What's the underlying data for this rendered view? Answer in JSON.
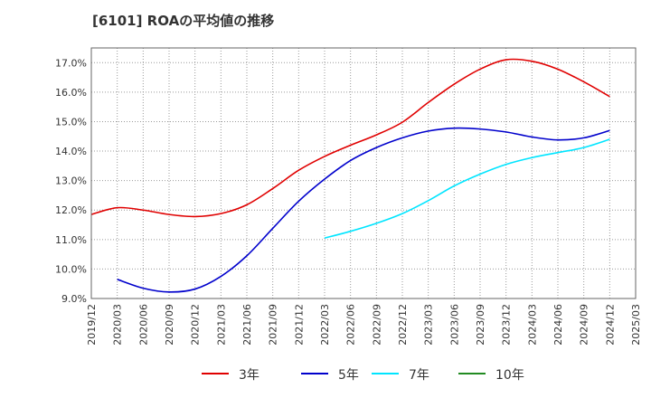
{
  "chart_data": {
    "type": "line",
    "title": "[6101]  ROAの平均値の推移",
    "ylim": [
      9.0,
      17.5
    ],
    "y_ticks": [
      "9.0%",
      "10.0%",
      "11.0%",
      "12.0%",
      "13.0%",
      "14.0%",
      "15.0%",
      "16.0%",
      "17.0%"
    ],
    "y_tick_values": [
      9,
      10,
      11,
      12,
      13,
      14,
      15,
      16,
      17
    ],
    "x_ticks": [
      "2019/12",
      "2020/03",
      "2020/06",
      "2020/09",
      "2020/12",
      "2021/03",
      "2021/06",
      "2021/09",
      "2021/12",
      "2022/03",
      "2022/06",
      "2022/09",
      "2022/12",
      "2023/03",
      "2023/06",
      "2023/09",
      "2023/12",
      "2024/03",
      "2024/06",
      "2024/09",
      "2024/12",
      "2025/03"
    ],
    "grid": true,
    "legend_position": "bottom",
    "series": [
      {
        "name": "3年",
        "color": "#e00000",
        "values": [
          11.85,
          12.08,
          12.0,
          11.85,
          11.78,
          11.88,
          12.18,
          12.73,
          13.35,
          13.82,
          14.2,
          14.55,
          14.98,
          15.65,
          16.27,
          16.78,
          17.1,
          17.05,
          16.78,
          16.35,
          15.85
        ]
      },
      {
        "name": "5年",
        "color": "#0000cc",
        "values": [
          null,
          9.65,
          9.35,
          9.22,
          9.32,
          9.75,
          10.45,
          11.38,
          12.3,
          13.05,
          13.68,
          14.12,
          14.45,
          14.68,
          14.78,
          14.75,
          14.65,
          14.48,
          14.38,
          14.45,
          14.7
        ]
      },
      {
        "name": "7年",
        "color": "#00e5ff",
        "values": [
          null,
          null,
          null,
          null,
          null,
          null,
          null,
          null,
          null,
          11.05,
          11.28,
          11.55,
          11.88,
          12.32,
          12.82,
          13.22,
          13.55,
          13.78,
          13.95,
          14.12,
          14.4
        ]
      },
      {
        "name": "10年",
        "color": "#228b22",
        "values": [
          null,
          null,
          null,
          null,
          null,
          null,
          null,
          null,
          null,
          null,
          null,
          null,
          null,
          null,
          null,
          null,
          null,
          null,
          null,
          null,
          null
        ]
      }
    ]
  }
}
